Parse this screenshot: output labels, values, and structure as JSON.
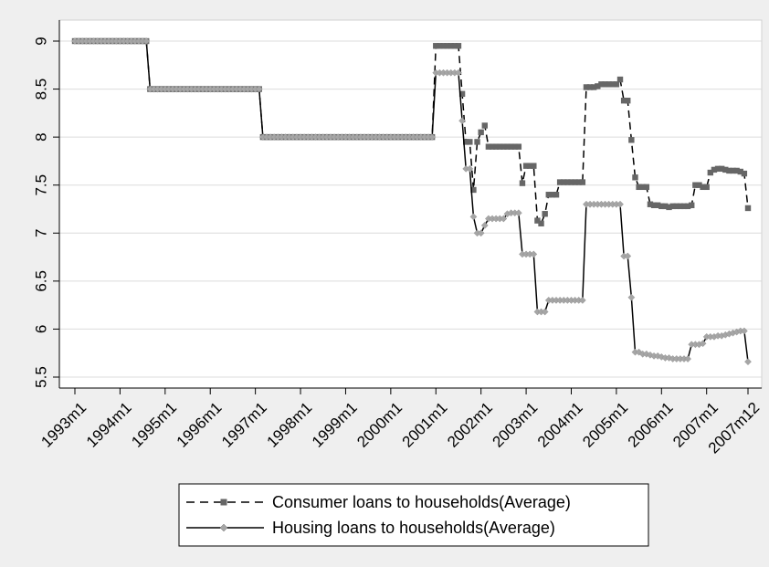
{
  "chart_data": {
    "type": "line",
    "title": "",
    "xlabel": "",
    "ylabel": "",
    "ylim": [
      5.5,
      9
    ],
    "yticks": [
      5.5,
      6,
      6.5,
      7,
      7.5,
      8,
      8.5,
      9
    ],
    "ytick_labels": [
      "5.5",
      "6",
      "6.5",
      "7",
      "7.5",
      "8",
      "8.5",
      "9"
    ],
    "xlim": [
      "1993m1",
      "2007m12"
    ],
    "xticks": [
      "1993m1",
      "1994m1",
      "1995m1",
      "1996m1",
      "1997m1",
      "1998m1",
      "1999m1",
      "2000m1",
      "2001m1",
      "2002m1",
      "2003m1",
      "2004m1",
      "2005m1",
      "2006m1",
      "2007m1",
      "2007m12"
    ],
    "grid": true,
    "legend_position": "bottom",
    "series": [
      {
        "name": "Consumer loans to households(Average)",
        "style": "dashed",
        "marker": "square",
        "color": "#666666",
        "points": [
          [
            "1993m1",
            9.0
          ],
          [
            "1994m8",
            9.0
          ],
          [
            "1994m9",
            8.5
          ],
          [
            "1997m2",
            8.5
          ],
          [
            "1997m3",
            8.0
          ],
          [
            "2000m12",
            8.0
          ],
          [
            "2001m1",
            8.95
          ],
          [
            "2001m2",
            8.95
          ],
          [
            "2001m3",
            8.95
          ],
          [
            "2001m4",
            8.95
          ],
          [
            "2001m5",
            8.95
          ],
          [
            "2001m6",
            8.95
          ],
          [
            "2001m7",
            8.95
          ],
          [
            "2001m8",
            8.45
          ],
          [
            "2001m9",
            7.95
          ],
          [
            "2001m10",
            7.95
          ],
          [
            "2001m11",
            7.45
          ],
          [
            "2001m12",
            7.95
          ],
          [
            "2002m1",
            8.05
          ],
          [
            "2002m2",
            8.12
          ],
          [
            "2002m3",
            7.9
          ],
          [
            "2002m4",
            7.9
          ],
          [
            "2002m5",
            7.9
          ],
          [
            "2002m6",
            7.9
          ],
          [
            "2002m7",
            7.9
          ],
          [
            "2002m8",
            7.9
          ],
          [
            "2002m9",
            7.9
          ],
          [
            "2002m10",
            7.9
          ],
          [
            "2002m11",
            7.9
          ],
          [
            "2002m12",
            7.52
          ],
          [
            "2003m1",
            7.7
          ],
          [
            "2003m2",
            7.7
          ],
          [
            "2003m3",
            7.7
          ],
          [
            "2003m4",
            7.13
          ],
          [
            "2003m5",
            7.1
          ],
          [
            "2003m6",
            7.2
          ],
          [
            "2003m7",
            7.4
          ],
          [
            "2003m8",
            7.4
          ],
          [
            "2003m9",
            7.4
          ],
          [
            "2003m10",
            7.53
          ],
          [
            "2003m11",
            7.53
          ],
          [
            "2003m12",
            7.53
          ],
          [
            "2004m1",
            7.53
          ],
          [
            "2004m2",
            7.53
          ],
          [
            "2004m3",
            7.53
          ],
          [
            "2004m4",
            7.53
          ],
          [
            "2004m5",
            8.52
          ],
          [
            "2004m6",
            8.52
          ],
          [
            "2004m7",
            8.52
          ],
          [
            "2004m8",
            8.53
          ],
          [
            "2004m9",
            8.55
          ],
          [
            "2004m10",
            8.55
          ],
          [
            "2004m11",
            8.55
          ],
          [
            "2004m12",
            8.55
          ],
          [
            "2005m1",
            8.55
          ],
          [
            "2005m2",
            8.6
          ],
          [
            "2005m3",
            8.38
          ],
          [
            "2005m4",
            8.38
          ],
          [
            "2005m5",
            7.97
          ],
          [
            "2005m6",
            7.58
          ],
          [
            "2005m7",
            7.48
          ],
          [
            "2005m8",
            7.48
          ],
          [
            "2005m9",
            7.48
          ],
          [
            "2005m10",
            7.3
          ],
          [
            "2005m11",
            7.29
          ],
          [
            "2005m12",
            7.29
          ],
          [
            "2006m1",
            7.28
          ],
          [
            "2006m2",
            7.28
          ],
          [
            "2006m3",
            7.27
          ],
          [
            "2006m4",
            7.28
          ],
          [
            "2006m5",
            7.28
          ],
          [
            "2006m6",
            7.28
          ],
          [
            "2006m7",
            7.28
          ],
          [
            "2006m8",
            7.28
          ],
          [
            "2006m9",
            7.29
          ],
          [
            "2006m10",
            7.5
          ],
          [
            "2006m11",
            7.5
          ],
          [
            "2006m12",
            7.48
          ],
          [
            "2007m1",
            7.48
          ],
          [
            "2007m2",
            7.63
          ],
          [
            "2007m3",
            7.66
          ],
          [
            "2007m4",
            7.67
          ],
          [
            "2007m5",
            7.67
          ],
          [
            "2007m6",
            7.66
          ],
          [
            "2007m7",
            7.65
          ],
          [
            "2007m8",
            7.65
          ],
          [
            "2007m9",
            7.65
          ],
          [
            "2007m10",
            7.64
          ],
          [
            "2007m11",
            7.62
          ],
          [
            "2007m12",
            7.26
          ]
        ]
      },
      {
        "name": "Housing loans to households(Average)",
        "style": "solid",
        "marker": "diamond",
        "color": "#000000",
        "marker_color": "#a6a6a6",
        "points": [
          [
            "1993m1",
            9.0
          ],
          [
            "1994m8",
            9.0
          ],
          [
            "1994m9",
            8.5
          ],
          [
            "1997m2",
            8.5
          ],
          [
            "1997m3",
            8.0
          ],
          [
            "2000m12",
            8.0
          ],
          [
            "2001m1",
            8.67
          ],
          [
            "2001m2",
            8.67
          ],
          [
            "2001m3",
            8.67
          ],
          [
            "2001m4",
            8.67
          ],
          [
            "2001m5",
            8.67
          ],
          [
            "2001m6",
            8.67
          ],
          [
            "2001m7",
            8.67
          ],
          [
            "2001m8",
            8.17
          ],
          [
            "2001m9",
            7.67
          ],
          [
            "2001m10",
            7.67
          ],
          [
            "2001m11",
            7.17
          ],
          [
            "2001m12",
            7.0
          ],
          [
            "2002m1",
            7.0
          ],
          [
            "2002m2",
            7.08
          ],
          [
            "2002m3",
            7.15
          ],
          [
            "2002m4",
            7.15
          ],
          [
            "2002m5",
            7.15
          ],
          [
            "2002m6",
            7.15
          ],
          [
            "2002m7",
            7.15
          ],
          [
            "2002m8",
            7.2
          ],
          [
            "2002m9",
            7.21
          ],
          [
            "2002m10",
            7.21
          ],
          [
            "2002m11",
            7.21
          ],
          [
            "2002m12",
            6.78
          ],
          [
            "2003m1",
            6.78
          ],
          [
            "2003m2",
            6.78
          ],
          [
            "2003m3",
            6.78
          ],
          [
            "2003m4",
            6.18
          ],
          [
            "2003m5",
            6.18
          ],
          [
            "2003m6",
            6.18
          ],
          [
            "2003m7",
            6.3
          ],
          [
            "2003m8",
            6.3
          ],
          [
            "2003m9",
            6.3
          ],
          [
            "2003m10",
            6.3
          ],
          [
            "2003m11",
            6.3
          ],
          [
            "2003m12",
            6.3
          ],
          [
            "2004m1",
            6.3
          ],
          [
            "2004m2",
            6.3
          ],
          [
            "2004m3",
            6.3
          ],
          [
            "2004m4",
            6.3
          ],
          [
            "2004m5",
            7.3
          ],
          [
            "2004m6",
            7.3
          ],
          [
            "2004m7",
            7.3
          ],
          [
            "2004m8",
            7.3
          ],
          [
            "2004m9",
            7.3
          ],
          [
            "2004m10",
            7.3
          ],
          [
            "2004m11",
            7.3
          ],
          [
            "2004m12",
            7.3
          ],
          [
            "2005m1",
            7.3
          ],
          [
            "2005m2",
            7.3
          ],
          [
            "2005m3",
            6.76
          ],
          [
            "2005m4",
            6.76
          ],
          [
            "2005m5",
            6.33
          ],
          [
            "2005m6",
            5.76
          ],
          [
            "2005m7",
            5.76
          ],
          [
            "2005m8",
            5.74
          ],
          [
            "2005m9",
            5.74
          ],
          [
            "2005m10",
            5.73
          ],
          [
            "2005m11",
            5.72
          ],
          [
            "2005m12",
            5.72
          ],
          [
            "2006m1",
            5.71
          ],
          [
            "2006m2",
            5.7
          ],
          [
            "2006m3",
            5.7
          ],
          [
            "2006m4",
            5.69
          ],
          [
            "2006m5",
            5.69
          ],
          [
            "2006m6",
            5.69
          ],
          [
            "2006m7",
            5.69
          ],
          [
            "2006m8",
            5.69
          ],
          [
            "2006m9",
            5.84
          ],
          [
            "2006m10",
            5.84
          ],
          [
            "2006m11",
            5.84
          ],
          [
            "2006m12",
            5.85
          ],
          [
            "2007m1",
            5.92
          ],
          [
            "2007m2",
            5.92
          ],
          [
            "2007m3",
            5.92
          ],
          [
            "2007m4",
            5.93
          ],
          [
            "2007m5",
            5.93
          ],
          [
            "2007m6",
            5.94
          ],
          [
            "2007m7",
            5.95
          ],
          [
            "2007m8",
            5.96
          ],
          [
            "2007m9",
            5.97
          ],
          [
            "2007m10",
            5.98
          ],
          [
            "2007m11",
            5.98
          ],
          [
            "2007m12",
            5.66
          ]
        ]
      }
    ]
  }
}
